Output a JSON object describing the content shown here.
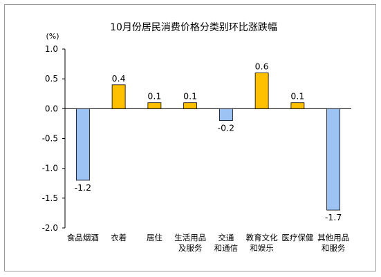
{
  "chart_data": {
    "type": "bar",
    "title": "10月份居民消费价格分类别环比涨跌幅",
    "unit": "(%)",
    "categories": [
      [
        "食品烟酒"
      ],
      [
        "衣着"
      ],
      [
        "居住"
      ],
      [
        "生活用品",
        "及服务"
      ],
      [
        "交通",
        "和通信"
      ],
      [
        "教育文化",
        "和娱乐"
      ],
      [
        "医疗保健"
      ],
      [
        "其他用品",
        "和服务"
      ]
    ],
    "values": [
      -1.2,
      0.4,
      0.1,
      0.1,
      -0.2,
      0.6,
      0.1,
      -1.7
    ],
    "data_labels": [
      "-1.2",
      "0.4",
      "0.1",
      "0.1",
      "-0.2",
      "0.6",
      "0.1",
      "-1.7"
    ],
    "ylim": [
      -2.0,
      1.0
    ],
    "yticks": [
      1.0,
      0.5,
      0.0,
      -0.5,
      -1.0,
      -1.5,
      -2.0
    ],
    "ytick_labels": [
      "1.0",
      "0.5",
      "0.0",
      "-0.5",
      "-1.0",
      "-1.5",
      "-2.0"
    ],
    "colors": {
      "positive": "#FFC000",
      "negative": "#9DC3F5",
      "bar_edge": "#000000",
      "axis": "#000000"
    },
    "grid": false,
    "legend": "none"
  }
}
